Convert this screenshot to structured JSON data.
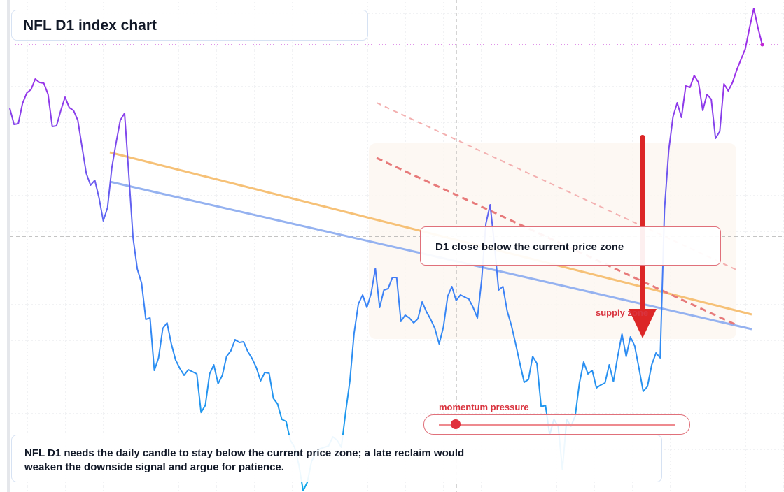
{
  "chart_data": {
    "type": "line",
    "title": "NFL D1 index chart",
    "annotations": {
      "callout": "D1 close below the current price zone",
      "zone_label": "supply zone",
      "momentum_label": "momentum pressure",
      "note": "NFL D1 needs the daily candle to stay below the current price zone; a late reclaim would weaken the downside signal and argue for patience."
    },
    "gradient": [
      "#9b30e8",
      "#3b82f6",
      "#0ea5e9"
    ],
    "ylim": [
      0,
      704
    ],
    "values": [
      549,
      526,
      527,
      556,
      571,
      576,
      591,
      586,
      585,
      569,
      523,
      524,
      546,
      565,
      550,
      546,
      532,
      494,
      456,
      439,
      446,
      421,
      388,
      407,
      464,
      499,
      532,
      542,
      454,
      364,
      319,
      299,
      247,
      249,
      174,
      192,
      234,
      242,
      212,
      189,
      177,
      167,
      175,
      172,
      169,
      114,
      124,
      169,
      182,
      155,
      167,
      194,
      202,
      218,
      214,
      215,
      201,
      191,
      178,
      159,
      171,
      170,
      134,
      126,
      104,
      101,
      74,
      64,
      39,
      2,
      14,
      44,
      56,
      62,
      64,
      66,
      79,
      74,
      64,
      114,
      159,
      227,
      269,
      282,
      264,
      284,
      320,
      264,
      289,
      291,
      307,
      307,
      244,
      253,
      249,
      242,
      248,
      272,
      258,
      247,
      234,
      212,
      236,
      280,
      294,
      274,
      282,
      279,
      276,
      264,
      249,
      304,
      384,
      411,
      354,
      289,
      294,
      259,
      238,
      212,
      184,
      157,
      161,
      194,
      184,
      122,
      124,
      82,
      104,
      94,
      32,
      104,
      94,
      109,
      156,
      186,
      169,
      174,
      149,
      153,
      156,
      182,
      158,
      194,
      226,
      194,
      222,
      209,
      177,
      144,
      151,
      182,
      199,
      192,
      404,
      489,
      537,
      557,
      536,
      581,
      579,
      596,
      586,
      546,
      569,
      562,
      506,
      516,
      584,
      574,
      586,
      604,
      619,
      634,
      664,
      692,
      664,
      640
    ]
  }
}
